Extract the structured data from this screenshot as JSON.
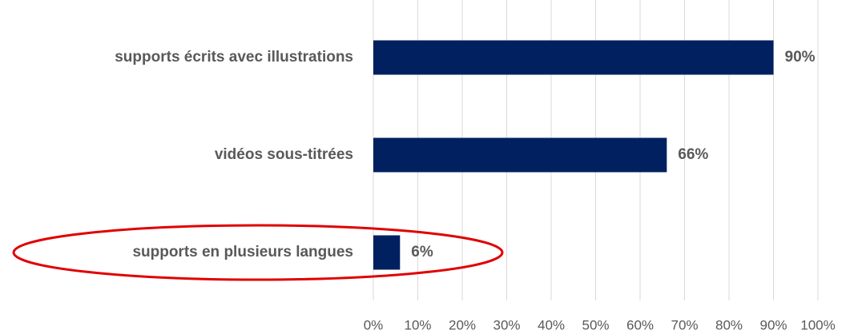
{
  "chart_data": {
    "type": "barh",
    "categories": [
      "supports écrits avec illustrations",
      "vidéos sous-titrées",
      "supports en plusieurs langues"
    ],
    "values": [
      90,
      66,
      6
    ],
    "value_labels": [
      "90%",
      "66%",
      "6%"
    ],
    "color": "#002060",
    "xlim": [
      0,
      100
    ],
    "xticks": [
      {
        "value": 0,
        "label": "0%"
      },
      {
        "value": 10,
        "label": "10%"
      },
      {
        "value": 20,
        "label": "20%"
      },
      {
        "value": 30,
        "label": "30%"
      },
      {
        "value": 40,
        "label": "40%"
      },
      {
        "value": 50,
        "label": "50%"
      },
      {
        "value": 60,
        "label": "60%"
      },
      {
        "value": 70,
        "label": "70%"
      },
      {
        "value": 80,
        "label": "80%"
      },
      {
        "value": 90,
        "label": "90%"
      },
      {
        "value": 100,
        "label": "100%"
      }
    ],
    "grid": true
  }
}
